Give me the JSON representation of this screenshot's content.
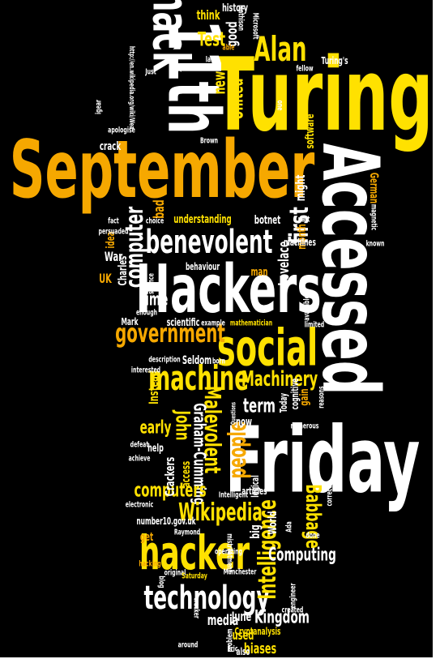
{
  "words": [
    "Turing",
    "September",
    "Accessed",
    "Friday",
    "Hackers",
    "11th",
    "hack",
    "social",
    "benevolent",
    "computer",
    "government",
    "machine",
    "Machinery",
    "people",
    "Malevolent",
    "John",
    "Graham-Cumming",
    "early",
    "computers",
    "Wikipedia",
    "hacker",
    "technology",
    "Intelligence",
    "Babbage",
    "Computing",
    "Kingdom",
    "Alan",
    "Test",
    "think",
    "history",
    "good",
    "new",
    "United",
    "Turing's",
    "first",
    "might",
    "time",
    "UK",
    "War",
    "Charles",
    "Lovelace",
    "term",
    "now",
    "Crackers",
    "access",
    "help",
    "means",
    "media",
    "June",
    "used",
    "biases",
    "Seldom",
    "crack",
    "software",
    "German",
    "month",
    "scientific",
    "understanding",
    "botnet",
    "bad",
    "idea",
    "behaviour",
    "man",
    "mathematician",
    "number10.gov.uk",
    "Cryptanalysis",
    "get",
    "Raymond",
    "World",
    "big",
    "logical",
    "articles",
    "Instead",
    "gain",
    "cognitive",
    "Today",
    "Brown",
    "Just",
    "later",
    "able",
    "Microsoft",
    "Mathison",
    "also",
    "Eric",
    "around",
    "created",
    "engineer",
    "done",
    "correct",
    "numerous",
    "apologise",
    "igear",
    "known",
    "magnetic",
    "fellow",
    "one",
    "electronic",
    "defeat",
    "achieve",
    "Intelligent",
    "hacking",
    "blog",
    "original",
    "Saturday",
    "Manchester",
    "mistreatment",
    "cracker",
    "problem",
    "http://en.wikipedia.org/wiki/Wea",
    "Ada",
    "limited",
    "available",
    "example",
    "born",
    "description",
    "interested",
    "Mark",
    "enough",
    "science",
    "fact",
    "persuaded",
    "choice",
    "machines",
    "part",
    "reasons",
    "Questions",
    "operating"
  ]
}
